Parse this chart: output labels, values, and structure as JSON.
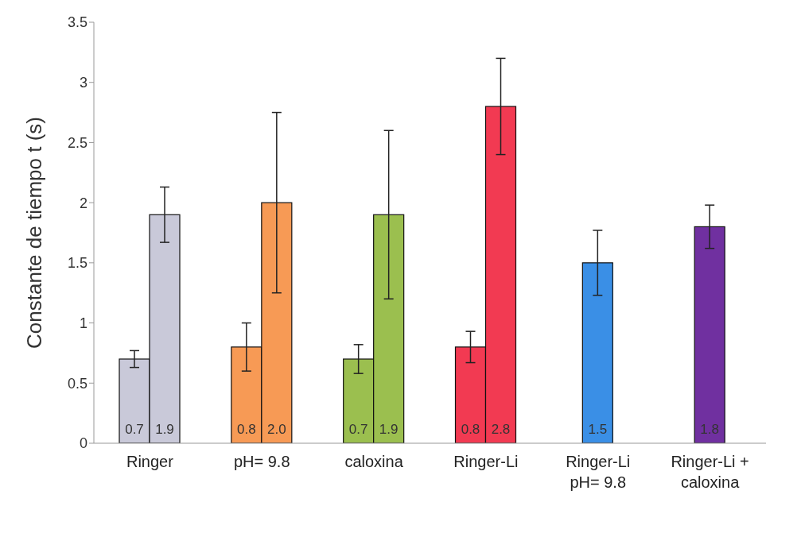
{
  "chart_data": {
    "type": "bar",
    "ylabel": "Constante de tiempo t (s)",
    "categories": [
      "Ringer",
      "pH= 9.8",
      "caloxina",
      "Ringer-Li",
      "Ringer-Li\npH= 9.8",
      "Ringer-Li +\ncaloxina"
    ],
    "series": [
      {
        "colors": [
          "#c9c9d9",
          "#f79a55",
          "#9bbf4f",
          "#f23a52",
          null,
          null
        ],
        "values": [
          0.7,
          0.8,
          0.7,
          0.8,
          null,
          null
        ],
        "errors": [
          0.07,
          0.2,
          0.12,
          0.13,
          null,
          null
        ],
        "value_labels": [
          "0.7",
          "0.8",
          "0.7",
          "0.8",
          null,
          null
        ]
      },
      {
        "colors": [
          "#c9c9d9",
          "#f79a55",
          "#9bbf4f",
          "#f23a52",
          "#3a8fe6",
          "#7030a0"
        ],
        "values": [
          1.9,
          2.0,
          1.9,
          2.8,
          1.5,
          1.8
        ],
        "errors": [
          0.23,
          0.75,
          0.7,
          0.4,
          0.27,
          0.18
        ],
        "value_labels": [
          "1.9",
          "2.0",
          "1.9",
          "2.8",
          "1.5",
          "1.8"
        ]
      }
    ],
    "ylim": [
      0,
      3.5
    ],
    "yticks": [
      0,
      0.5,
      1,
      1.5,
      2,
      2.5,
      3,
      3.5
    ],
    "grid": false,
    "legend": false
  }
}
